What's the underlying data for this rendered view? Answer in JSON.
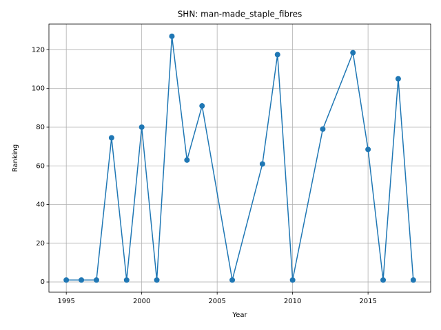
{
  "chart_data": {
    "type": "line",
    "title": "SHN: man-made_staple_fibres",
    "x_label": "Year",
    "y_label": "Ranking",
    "x": [
      1995,
      1996,
      1997,
      1998,
      1999,
      2000,
      2001,
      2002,
      2003,
      2004,
      2006,
      2008,
      2009,
      2010,
      2012,
      2014,
      2015,
      2016,
      2017,
      2018
    ],
    "series": [
      {
        "name": "Ranking",
        "color": "#1f77b4",
        "values": [
          1,
          1,
          1,
          74.5,
          1,
          80,
          1,
          127,
          63,
          91,
          1,
          61,
          117.5,
          1,
          79,
          118.5,
          68.5,
          1,
          105,
          1
        ]
      }
    ],
    "xlim": [
      1993.85,
      2019.15
    ],
    "xticks": [
      1995,
      2000,
      2005,
      2010,
      2015
    ],
    "ylim": [
      -5.3,
      133.3
    ],
    "yticks": [
      0,
      20,
      40,
      60,
      80,
      100,
      120
    ],
    "grid": true
  }
}
